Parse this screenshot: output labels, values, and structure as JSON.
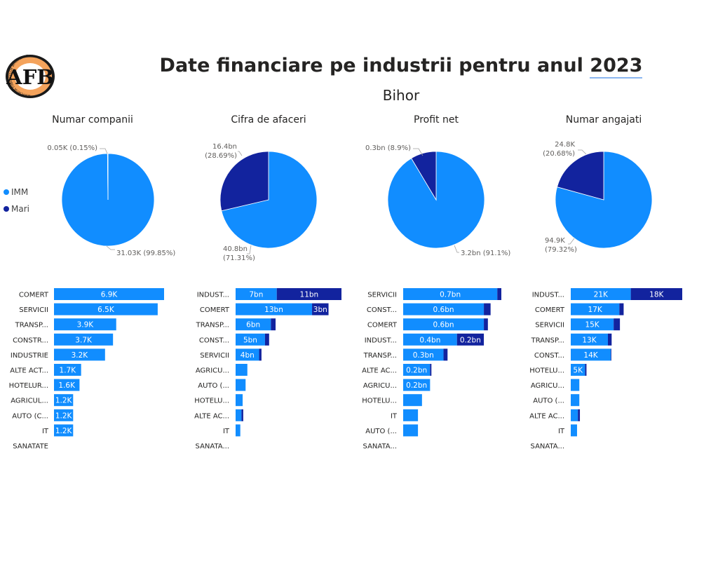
{
  "header": {
    "title": "Date financiare pe industrii pentru anul",
    "year": "2023",
    "subtitle": "Bihor"
  },
  "logo": {
    "letters": "AFB",
    "ring_text": "ASOCIATIA FINANTELOR BIHOREANE"
  },
  "legend": [
    {
      "name": "IMM",
      "color": "#118dff"
    },
    {
      "name": "Mari",
      "color": "#12239e"
    }
  ],
  "colors": {
    "imm": "#118dff",
    "mari": "#12239e"
  },
  "chart_data": [
    {
      "type": "pie",
      "title": "Numar companii",
      "slices": [
        {
          "name": "IMM",
          "value": 31.03,
          "label": "31.03K (99.85%)"
        },
        {
          "name": "Mari",
          "value": 0.05,
          "label": "0.05K (0.15%)"
        }
      ]
    },
    {
      "type": "pie",
      "title": "Cifra de afaceri",
      "slices": [
        {
          "name": "IMM",
          "value": 40.8,
          "label": [
            "40.8bn",
            "(71.31%)"
          ]
        },
        {
          "name": "Mari",
          "value": 16.4,
          "label": [
            "16.4bn",
            "(28.69%)"
          ]
        }
      ]
    },
    {
      "type": "pie",
      "title": "Profit net",
      "slices": [
        {
          "name": "IMM",
          "value": 3.2,
          "label": "3.2bn (91.1%)"
        },
        {
          "name": "Mari",
          "value": 0.3,
          "label": "0.3bn (8.9%)"
        }
      ]
    },
    {
      "type": "pie",
      "title": "Numar angajati",
      "slices": [
        {
          "name": "IMM",
          "value": 94.9,
          "label": [
            "94.9K",
            "(79.32%)"
          ]
        },
        {
          "name": "Mari",
          "value": 24.8,
          "label": [
            "24.8K",
            "(20.68%)"
          ]
        }
      ]
    },
    {
      "type": "bar",
      "stacked": true,
      "orientation": "horizontal",
      "categories": [
        "COMERT",
        "SERVICII",
        "TRANSP...",
        "CONSTR...",
        "INDUSTRIE",
        "ALTE ACT...",
        "HOTELUR...",
        "AGRICUL...",
        "AUTO (C...",
        "IT",
        "SANATATE"
      ],
      "series": [
        {
          "name": "IMM",
          "values": [
            6.9,
            6.5,
            3.9,
            3.7,
            3.2,
            1.7,
            1.6,
            1.2,
            1.2,
            1.2,
            0
          ],
          "labels": [
            "6.9K",
            "6.5K",
            "3.9K",
            "3.7K",
            "3.2K",
            "1.7K",
            "1.6K",
            "1.2K",
            "1.2K",
            "1.2K",
            ""
          ]
        },
        {
          "name": "Mari",
          "values": [
            0,
            0,
            0,
            0,
            0,
            0,
            0,
            0,
            0,
            0,
            0
          ],
          "labels": [
            "",
            "",
            "",
            "",
            "",
            "",
            "",
            "",
            "",
            "",
            ""
          ]
        }
      ],
      "xlim": [
        0,
        6.9
      ]
    },
    {
      "type": "bar",
      "stacked": true,
      "orientation": "horizontal",
      "categories": [
        "INDUST...",
        "COMERT",
        "TRANSP...",
        "CONST...",
        "SERVICII",
        "AGRICU...",
        "AUTO (...",
        "HOTELU...",
        "ALTE AC...",
        "IT",
        "SANATA..."
      ],
      "series": [
        {
          "name": "IMM",
          "values": [
            7,
            13,
            6,
            5,
            4,
            2,
            1.7,
            1.2,
            1,
            0.8,
            0
          ],
          "labels": [
            "7bn",
            "13bn",
            "6bn",
            "5bn",
            "4bn",
            "",
            "",
            "",
            "",
            "",
            ""
          ]
        },
        {
          "name": "Mari",
          "values": [
            11,
            2.8,
            0.8,
            0.7,
            0.4,
            0,
            0,
            0,
            0.3,
            0,
            0
          ],
          "labels": [
            "11bn",
            "3bn",
            "",
            "",
            "",
            "",
            "",
            "",
            "",
            "",
            ""
          ]
        }
      ],
      "xlim": [
        0,
        18
      ]
    },
    {
      "type": "bar",
      "stacked": true,
      "orientation": "horizontal",
      "categories": [
        "SERVICII",
        "CONST...",
        "COMERT",
        "INDUST...",
        "TRANSP...",
        "ALTE AC...",
        "AGRICU...",
        "HOTELU...",
        "IT",
        "AUTO (...",
        "SANATA..."
      ],
      "series": [
        {
          "name": "IMM",
          "values": [
            0.7,
            0.6,
            0.6,
            0.4,
            0.3,
            0.2,
            0.2,
            0.14,
            0.11,
            0.11,
            0
          ],
          "labels": [
            "0.7bn",
            "0.6bn",
            "0.6bn",
            "0.4bn",
            "0.3bn",
            "0.2bn",
            "0.2bn",
            "",
            "",
            "",
            ""
          ]
        },
        {
          "name": "Mari",
          "values": [
            0.03,
            0.05,
            0.03,
            0.2,
            0.03,
            0.01,
            0,
            0,
            0,
            0,
            0
          ],
          "labels": [
            "",
            "",
            "",
            "0.2bn",
            "",
            "",
            "",
            "",
            "",
            "",
            ""
          ]
        }
      ],
      "xlim": [
        0,
        0.73
      ]
    },
    {
      "type": "bar",
      "stacked": true,
      "orientation": "horizontal",
      "categories": [
        "INDUST...",
        "COMERT",
        "SERVICII",
        "TRANSP...",
        "CONST...",
        "HOTELU...",
        "AGRICU...",
        "AUTO (...",
        "ALTE AC...",
        "IT",
        "SANATA..."
      ],
      "series": [
        {
          "name": "IMM",
          "values": [
            21,
            17,
            15,
            13,
            14,
            5,
            3,
            3,
            2.5,
            2.2,
            0
          ],
          "labels": [
            "21K",
            "17K",
            "15K",
            "13K",
            "14K",
            "5K",
            "",
            "",
            "",
            "",
            ""
          ]
        },
        {
          "name": "Mari",
          "values": [
            18,
            1.5,
            2.2,
            1.3,
            0.2,
            0.5,
            0,
            0,
            0.7,
            0,
            0
          ],
          "labels": [
            "18K",
            "",
            "",
            "",
            "",
            "",
            "",
            "",
            "",
            "",
            ""
          ]
        }
      ],
      "xlim": [
        0,
        39
      ]
    }
  ]
}
